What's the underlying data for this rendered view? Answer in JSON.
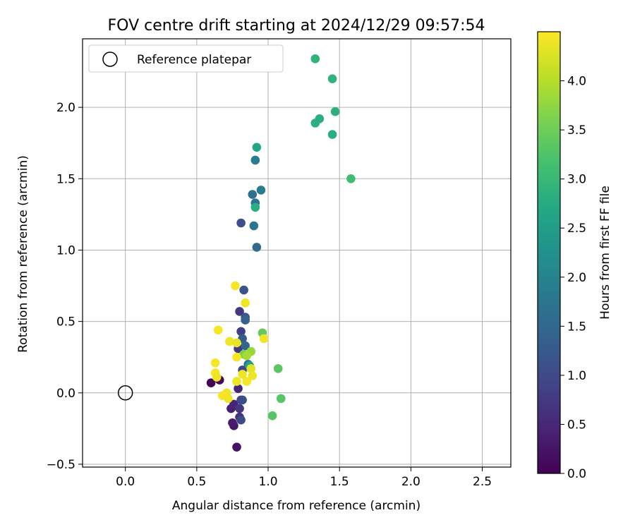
{
  "chart_data": {
    "type": "scatter",
    "title": "FOV centre drift starting at 2024/12/29 09:57:54",
    "xlabel": "Angular distance from reference (arcmin)",
    "ylabel": "Rotation from reference (arcmin)",
    "xlim": [
      -0.3,
      2.7
    ],
    "ylim": [
      -0.52,
      2.48
    ],
    "xticks": [
      0.0,
      0.5,
      1.0,
      1.5,
      2.0,
      2.5
    ],
    "yticks": [
      -0.5,
      0.0,
      0.5,
      1.0,
      1.5,
      2.0
    ],
    "grid": true,
    "legend": {
      "placement": "top-left",
      "entries": [
        "Reference platepar"
      ]
    },
    "reference_point": {
      "x": 0.0,
      "y": 0.0,
      "label": "Reference platepar"
    },
    "colorbar": {
      "label": "Hours from first FF file",
      "colormap": "viridis",
      "range": [
        0.0,
        4.5
      ],
      "ticks": [
        0.0,
        0.5,
        1.0,
        1.5,
        2.0,
        2.5,
        3.0,
        3.5,
        4.0
      ]
    },
    "points": [
      {
        "x": 0.6,
        "y": 0.07,
        "c": 0.05
      },
      {
        "x": 0.66,
        "y": 0.09,
        "c": 0.1
      },
      {
        "x": 0.78,
        "y": -0.38,
        "c": 0.2
      },
      {
        "x": 0.76,
        "y": -0.23,
        "c": 0.3
      },
      {
        "x": 0.75,
        "y": -0.21,
        "c": 0.35
      },
      {
        "x": 0.74,
        "y": -0.11,
        "c": 0.4
      },
      {
        "x": 0.76,
        "y": -0.08,
        "c": 0.45
      },
      {
        "x": 0.79,
        "y": 0.03,
        "c": 0.5
      },
      {
        "x": 0.8,
        "y": -0.17,
        "c": 0.6
      },
      {
        "x": 0.8,
        "y": -0.11,
        "c": 0.7
      },
      {
        "x": 0.81,
        "y": -0.05,
        "c": 0.8
      },
      {
        "x": 0.8,
        "y": 0.57,
        "c": 0.7
      },
      {
        "x": 0.79,
        "y": 0.31,
        "c": 0.75
      },
      {
        "x": 0.81,
        "y": 0.43,
        "c": 0.85
      },
      {
        "x": 0.82,
        "y": 0.16,
        "c": 0.9
      },
      {
        "x": 0.81,
        "y": -0.19,
        "c": 1.0
      },
      {
        "x": 0.82,
        "y": -0.05,
        "c": 1.05
      },
      {
        "x": 0.83,
        "y": 0.72,
        "c": 1.15
      },
      {
        "x": 0.81,
        "y": 1.19,
        "c": 1.1
      },
      {
        "x": 0.84,
        "y": 0.53,
        "c": 1.2
      },
      {
        "x": 0.82,
        "y": 0.38,
        "c": 1.3
      },
      {
        "x": 0.84,
        "y": 0.51,
        "c": 1.4
      },
      {
        "x": 0.84,
        "y": 0.33,
        "c": 1.5
      },
      {
        "x": 0.86,
        "y": 0.2,
        "c": 1.6
      },
      {
        "x": 0.92,
        "y": 1.02,
        "c": 1.55
      },
      {
        "x": 0.89,
        "y": 1.39,
        "c": 1.65
      },
      {
        "x": 0.91,
        "y": 1.33,
        "c": 1.7
      },
      {
        "x": 0.95,
        "y": 1.42,
        "c": 1.85
      },
      {
        "x": 0.9,
        "y": 1.17,
        "c": 1.75
      },
      {
        "x": 0.91,
        "y": 1.63,
        "c": 1.9
      },
      {
        "x": 0.87,
        "y": 0.19,
        "c": 2.6
      },
      {
        "x": 0.92,
        "y": 1.72,
        "c": 2.7
      },
      {
        "x": 0.91,
        "y": 1.3,
        "c": 2.8
      },
      {
        "x": 1.33,
        "y": 1.89,
        "c": 2.85
      },
      {
        "x": 1.36,
        "y": 1.92,
        "c": 2.8
      },
      {
        "x": 1.33,
        "y": 2.34,
        "c": 2.9
      },
      {
        "x": 1.45,
        "y": 2.2,
        "c": 2.9
      },
      {
        "x": 1.47,
        "y": 1.97,
        "c": 2.85
      },
      {
        "x": 1.45,
        "y": 1.81,
        "c": 2.8
      },
      {
        "x": 1.58,
        "y": 1.5,
        "c": 3.1
      },
      {
        "x": 0.96,
        "y": 0.42,
        "c": 3.4
      },
      {
        "x": 1.07,
        "y": 0.17,
        "c": 3.35
      },
      {
        "x": 1.09,
        "y": -0.04,
        "c": 3.3
      },
      {
        "x": 1.03,
        "y": -0.16,
        "c": 3.3
      },
      {
        "x": 0.83,
        "y": 0.27,
        "c": 3.6
      },
      {
        "x": 0.88,
        "y": 0.29,
        "c": 3.8
      },
      {
        "x": 0.85,
        "y": 0.26,
        "c": 3.9
      },
      {
        "x": 0.88,
        "y": 0.17,
        "c": 4.3
      },
      {
        "x": 0.89,
        "y": 0.12,
        "c": 4.4
      },
      {
        "x": 0.85,
        "y": 0.08,
        "c": 4.45
      },
      {
        "x": 0.82,
        "y": 0.13,
        "c": 4.4
      },
      {
        "x": 0.78,
        "y": 0.08,
        "c": 4.4
      },
      {
        "x": 0.77,
        "y": 0.75,
        "c": 4.45
      },
      {
        "x": 0.84,
        "y": 0.63,
        "c": 4.4
      },
      {
        "x": 0.97,
        "y": 0.38,
        "c": 4.4
      },
      {
        "x": 0.65,
        "y": 0.44,
        "c": 4.45
      },
      {
        "x": 0.73,
        "y": 0.36,
        "c": 4.4
      },
      {
        "x": 0.78,
        "y": 0.35,
        "c": 4.35
      },
      {
        "x": 0.78,
        "y": 0.25,
        "c": 4.45
      },
      {
        "x": 0.63,
        "y": 0.21,
        "c": 4.45
      },
      {
        "x": 0.63,
        "y": 0.14,
        "c": 4.45
      },
      {
        "x": 0.64,
        "y": 0.11,
        "c": 4.4
      },
      {
        "x": 0.71,
        "y": 0.0,
        "c": 4.4
      },
      {
        "x": 0.68,
        "y": -0.02,
        "c": 4.45
      },
      {
        "x": 0.72,
        "y": -0.04,
        "c": 4.4
      }
    ]
  }
}
